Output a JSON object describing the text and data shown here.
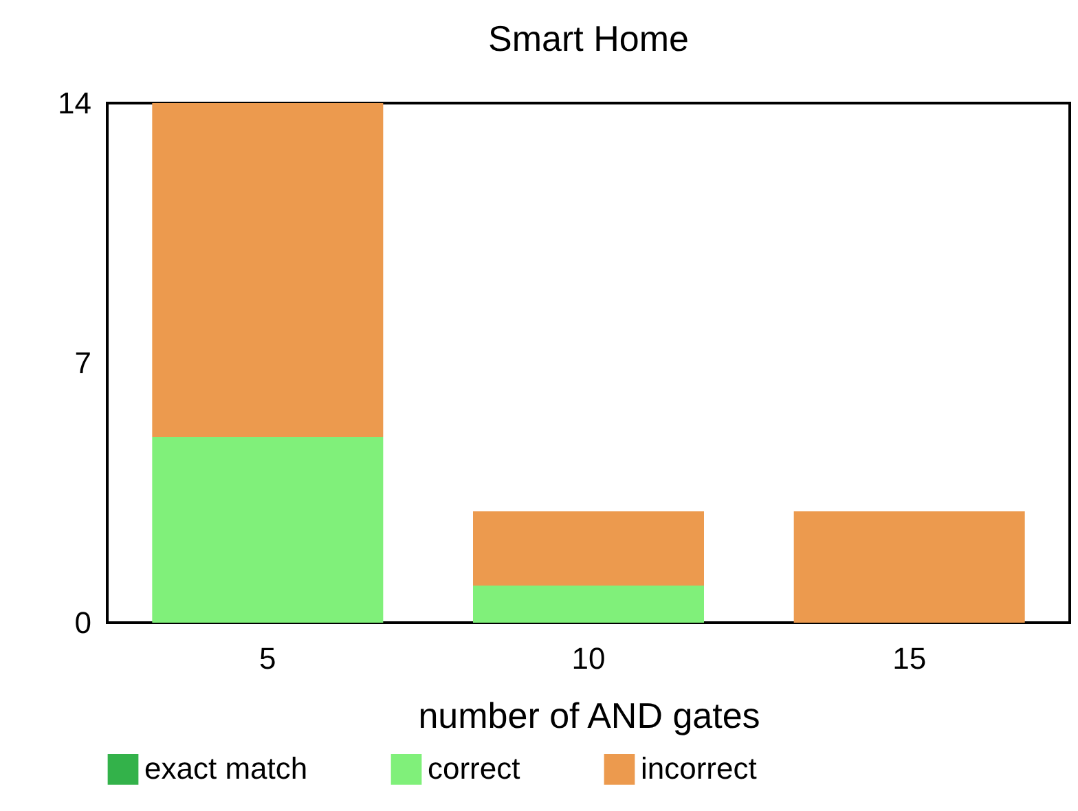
{
  "chart_data": {
    "type": "bar",
    "title": "Smart Home",
    "xlabel": "number of AND gates",
    "categories": [
      "5",
      "10",
      "15"
    ],
    "stacked": true,
    "ylim": [
      0,
      14
    ],
    "yticks": [
      0,
      7,
      14
    ],
    "grid": false,
    "legend": "bottom",
    "series": [
      {
        "name": "exact match",
        "color": "#33b24a",
        "values": [
          0,
          0,
          0
        ]
      },
      {
        "name": "correct",
        "color": "#80f07a",
        "values": [
          5,
          1,
          0
        ]
      },
      {
        "name": "incorrect",
        "color": "#ec9a4e",
        "values": [
          9,
          2,
          3
        ]
      }
    ]
  }
}
